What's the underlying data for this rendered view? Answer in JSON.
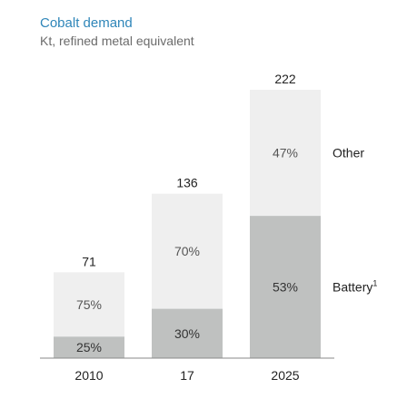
{
  "chart_data": {
    "type": "bar",
    "stacked": true,
    "title": "Cobalt demand",
    "subtitle": "Kt, refined metal equivalent",
    "categories": [
      "2010",
      "17",
      "2025"
    ],
    "totals": [
      71,
      136,
      222
    ],
    "series": [
      {
        "name": "Battery",
        "footnote": "1",
        "shares": [
          25,
          30,
          53
        ],
        "color": "#bfc1c0"
      },
      {
        "name": "Other",
        "shares": [
          75,
          70,
          47
        ],
        "color": "#efefef"
      }
    ],
    "ylim": [
      0,
      222
    ]
  }
}
